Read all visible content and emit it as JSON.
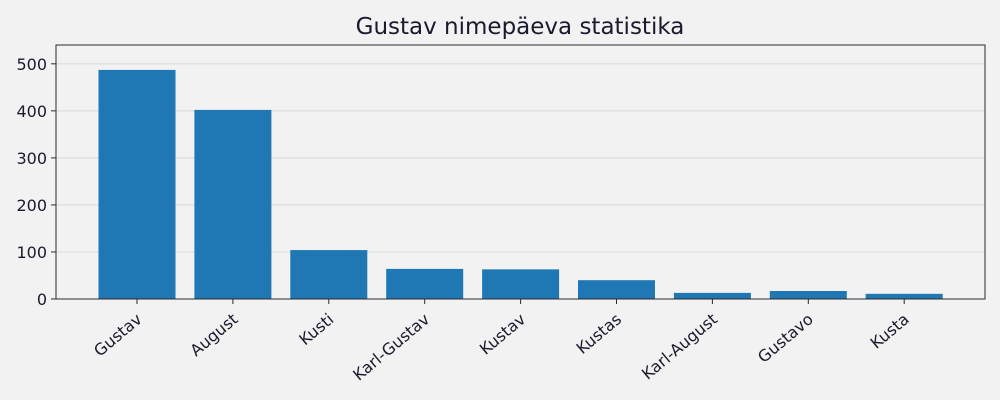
{
  "chart_data": {
    "type": "bar",
    "title": "Gustav nimepäeva statistika",
    "xlabel": "",
    "ylabel": "",
    "categories": [
      "Gustav",
      "August",
      "Kusti",
      "Karl-Gustav",
      "Kustav",
      "Kustas",
      "Karl-August",
      "Gustavo",
      "Kusta"
    ],
    "values": [
      487,
      402,
      104,
      64,
      63,
      40,
      13,
      17,
      11
    ],
    "ylim": [
      0,
      540
    ],
    "yticks": [
      0,
      100,
      200,
      300,
      400,
      500
    ],
    "grid": true,
    "bar_color": "#1f77b4",
    "x_label_rotation_deg": -40
  }
}
